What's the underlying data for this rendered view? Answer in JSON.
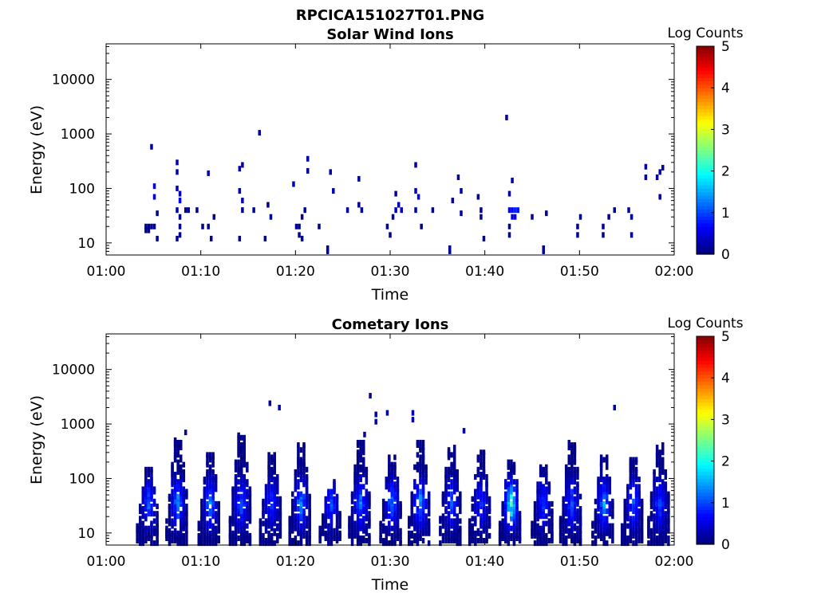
{
  "figure": {
    "filename_title": "RPCICA151027T01.PNG"
  },
  "colors": {
    "axis": "#000000",
    "background": "#ffffff",
    "colormap": [
      "#00007f",
      "#0000ff",
      "#007fff",
      "#00ffff",
      "#7fff7f",
      "#ffff00",
      "#ff7f00",
      "#ff0000",
      "#7f0000"
    ]
  },
  "chart_data": [
    {
      "type": "heatmap",
      "title": "Solar Wind Ions",
      "xlabel": "Time",
      "ylabel": "Energy (eV)",
      "yscale": "log",
      "ylim": [
        6,
        45000
      ],
      "xlim_minutes": [
        0,
        60
      ],
      "x_ticks": [
        "01:00",
        "01:10",
        "01:20",
        "01:30",
        "01:40",
        "01:50",
        "02:00"
      ],
      "y_ticks": [
        {
          "value": 10,
          "label": "10"
        },
        {
          "value": 100,
          "label": "100"
        },
        {
          "value": 1000,
          "label": "1000"
        },
        {
          "value": 10000,
          "label": "10000"
        }
      ],
      "colorbar": {
        "label": "Log Counts",
        "range": [
          0,
          5
        ],
        "ticks": [
          "0",
          "1",
          "2",
          "3",
          "4",
          "5"
        ]
      },
      "cells": [
        {
          "t": 4.2,
          "e": 20,
          "c": 0.1
        },
        {
          "t": 4.5,
          "e": 20,
          "c": 0.1
        },
        {
          "t": 4.8,
          "e": 20,
          "c": 0.1
        },
        {
          "t": 4.2,
          "e": 17,
          "c": 0.1
        },
        {
          "t": 4.5,
          "e": 17,
          "c": 0.1
        },
        {
          "t": 4.8,
          "e": 580,
          "c": 0.2
        },
        {
          "t": 5.1,
          "e": 110,
          "c": 0.4
        },
        {
          "t": 5.1,
          "e": 70,
          "c": 0.4
        },
        {
          "t": 5.1,
          "e": 20,
          "c": 0.1
        },
        {
          "t": 5.4,
          "e": 35,
          "c": 0.1
        },
        {
          "t": 5.4,
          "e": 12,
          "c": 0.1
        },
        {
          "t": 7.5,
          "e": 300,
          "c": 0.2
        },
        {
          "t": 7.5,
          "e": 200,
          "c": 0.2
        },
        {
          "t": 7.5,
          "e": 100,
          "c": 0.3
        },
        {
          "t": 7.8,
          "e": 80,
          "c": 0.3
        },
        {
          "t": 7.8,
          "e": 60,
          "c": 0.6
        },
        {
          "t": 7.5,
          "e": 40,
          "c": 0.2
        },
        {
          "t": 7.8,
          "e": 30,
          "c": 0.1
        },
        {
          "t": 7.8,
          "e": 20,
          "c": 0.1
        },
        {
          "t": 7.5,
          "e": 12,
          "c": 0.1
        },
        {
          "t": 7.8,
          "e": 14,
          "c": 0.1
        },
        {
          "t": 8.4,
          "e": 40,
          "c": 0.1
        },
        {
          "t": 8.7,
          "e": 40,
          "c": 0.1
        },
        {
          "t": 9.6,
          "e": 40,
          "c": 0.1
        },
        {
          "t": 10.2,
          "e": 20,
          "c": 0.1
        },
        {
          "t": 10.8,
          "e": 190,
          "c": 0.2
        },
        {
          "t": 10.8,
          "e": 20,
          "c": 0.1
        },
        {
          "t": 11.1,
          "e": 12,
          "c": 0.1
        },
        {
          "t": 11.4,
          "e": 30,
          "c": 0.1
        },
        {
          "t": 14.1,
          "e": 230,
          "c": 0.2
        },
        {
          "t": 14.4,
          "e": 270,
          "c": 0.2
        },
        {
          "t": 14.1,
          "e": 90,
          "c": 0.2
        },
        {
          "t": 14.4,
          "e": 60,
          "c": 0.3
        },
        {
          "t": 14.4,
          "e": 40,
          "c": 0.1
        },
        {
          "t": 14.1,
          "e": 12,
          "c": 0.1
        },
        {
          "t": 15.6,
          "e": 40,
          "c": 0.1
        },
        {
          "t": 16.2,
          "e": 1050,
          "c": 0.2
        },
        {
          "t": 17.1,
          "e": 50,
          "c": 0.1
        },
        {
          "t": 17.4,
          "e": 30,
          "c": 0.1
        },
        {
          "t": 16.8,
          "e": 12,
          "c": 0.1
        },
        {
          "t": 19.8,
          "e": 120,
          "c": 0.2
        },
        {
          "t": 20.1,
          "e": 20,
          "c": 0.1
        },
        {
          "t": 20.4,
          "e": 20,
          "c": 0.1
        },
        {
          "t": 20.4,
          "e": 14,
          "c": 0.1
        },
        {
          "t": 20.7,
          "e": 12,
          "c": 0.1
        },
        {
          "t": 20.7,
          "e": 30,
          "c": 0.1
        },
        {
          "t": 21.0,
          "e": 40,
          "c": 0.2
        },
        {
          "t": 21.3,
          "e": 350,
          "c": 0.2
        },
        {
          "t": 21.3,
          "e": 210,
          "c": 0.2
        },
        {
          "t": 22.5,
          "e": 20,
          "c": 0.1
        },
        {
          "t": 23.4,
          "e": 8,
          "c": 0.1
        },
        {
          "t": 23.4,
          "e": 7,
          "c": 0.1
        },
        {
          "t": 23.7,
          "e": 200,
          "c": 0.2
        },
        {
          "t": 24.0,
          "e": 90,
          "c": 0.2
        },
        {
          "t": 25.5,
          "e": 40,
          "c": 0.1
        },
        {
          "t": 26.7,
          "e": 150,
          "c": 0.2
        },
        {
          "t": 26.7,
          "e": 50,
          "c": 0.1
        },
        {
          "t": 27.0,
          "e": 40,
          "c": 0.1
        },
        {
          "t": 29.7,
          "e": 20,
          "c": 0.1
        },
        {
          "t": 30.0,
          "e": 14,
          "c": 0.1
        },
        {
          "t": 30.3,
          "e": 30,
          "c": 0.2
        },
        {
          "t": 30.6,
          "e": 40,
          "c": 0.3
        },
        {
          "t": 30.6,
          "e": 80,
          "c": 0.2
        },
        {
          "t": 30.9,
          "e": 50,
          "c": 0.3
        },
        {
          "t": 31.2,
          "e": 40,
          "c": 0.3
        },
        {
          "t": 32.7,
          "e": 270,
          "c": 0.2
        },
        {
          "t": 32.7,
          "e": 90,
          "c": 0.3
        },
        {
          "t": 33.0,
          "e": 70,
          "c": 0.5
        },
        {
          "t": 32.7,
          "e": 40,
          "c": 0.2
        },
        {
          "t": 33.3,
          "e": 20,
          "c": 0.1
        },
        {
          "t": 34.5,
          "e": 40,
          "c": 0.1
        },
        {
          "t": 36.3,
          "e": 8,
          "c": 0.1
        },
        {
          "t": 36.3,
          "e": 7,
          "c": 0.1
        },
        {
          "t": 36.6,
          "e": 60,
          "c": 0.1
        },
        {
          "t": 37.2,
          "e": 160,
          "c": 0.2
        },
        {
          "t": 37.5,
          "e": 90,
          "c": 0.2
        },
        {
          "t": 37.5,
          "e": 35,
          "c": 0.1
        },
        {
          "t": 39.3,
          "e": 70,
          "c": 0.1
        },
        {
          "t": 39.6,
          "e": 40,
          "c": 0.1
        },
        {
          "t": 39.6,
          "e": 30,
          "c": 0.1
        },
        {
          "t": 39.9,
          "e": 12,
          "c": 0.1
        },
        {
          "t": 42.3,
          "e": 2000,
          "c": 0.2
        },
        {
          "t": 42.6,
          "e": 80,
          "c": 0.3
        },
        {
          "t": 42.6,
          "e": 40,
          "c": 0.5
        },
        {
          "t": 42.9,
          "e": 40,
          "c": 0.6
        },
        {
          "t": 43.2,
          "e": 40,
          "c": 0.8
        },
        {
          "t": 43.5,
          "e": 40,
          "c": 0.7
        },
        {
          "t": 42.9,
          "e": 30,
          "c": 0.4
        },
        {
          "t": 43.2,
          "e": 30,
          "c": 0.5
        },
        {
          "t": 42.9,
          "e": 140,
          "c": 0.3
        },
        {
          "t": 42.6,
          "e": 20,
          "c": 0.1
        },
        {
          "t": 42.6,
          "e": 14,
          "c": 0.1
        },
        {
          "t": 45.0,
          "e": 30,
          "c": 0.1
        },
        {
          "t": 46.2,
          "e": 8,
          "c": 0.1
        },
        {
          "t": 46.2,
          "e": 7,
          "c": 0.1
        },
        {
          "t": 46.5,
          "e": 35,
          "c": 0.1
        },
        {
          "t": 49.8,
          "e": 20,
          "c": 0.1
        },
        {
          "t": 49.8,
          "e": 14,
          "c": 0.1
        },
        {
          "t": 50.1,
          "e": 30,
          "c": 0.1
        },
        {
          "t": 52.5,
          "e": 20,
          "c": 0.1
        },
        {
          "t": 52.5,
          "e": 14,
          "c": 0.1
        },
        {
          "t": 53.1,
          "e": 30,
          "c": 0.1
        },
        {
          "t": 53.7,
          "e": 40,
          "c": 0.1
        },
        {
          "t": 55.2,
          "e": 40,
          "c": 0.1
        },
        {
          "t": 55.5,
          "e": 14,
          "c": 0.1
        },
        {
          "t": 55.5,
          "e": 30,
          "c": 0.1
        },
        {
          "t": 57.0,
          "e": 250,
          "c": 0.2
        },
        {
          "t": 57.0,
          "e": 160,
          "c": 0.2
        },
        {
          "t": 58.2,
          "e": 160,
          "c": 0.2
        },
        {
          "t": 58.8,
          "e": 240,
          "c": 0.2
        },
        {
          "t": 58.5,
          "e": 200,
          "c": 0.2
        },
        {
          "t": 58.5,
          "e": 70,
          "c": 0.2
        }
      ]
    },
    {
      "type": "heatmap",
      "title": "Cometary Ions",
      "xlabel": "Time",
      "ylabel": "Energy (eV)",
      "yscale": "log",
      "ylim": [
        6,
        45000
      ],
      "xlim_minutes": [
        0,
        60
      ],
      "x_ticks": [
        "01:00",
        "01:10",
        "01:20",
        "01:30",
        "01:40",
        "01:50",
        "02:00"
      ],
      "y_ticks": [
        {
          "value": 10,
          "label": "10"
        },
        {
          "value": 100,
          "label": "100"
        },
        {
          "value": 1000,
          "label": "1000"
        },
        {
          "value": 10000,
          "label": "10000"
        }
      ],
      "colorbar": {
        "label": "Log Counts",
        "range": [
          0,
          5
        ],
        "ticks": [
          "0",
          "1",
          "2",
          "3",
          "4",
          "5"
        ]
      },
      "bursts": [
        {
          "t": 4.5,
          "top": 150,
          "peak": 1.3
        },
        {
          "t": 7.6,
          "top": 550,
          "peak": 1.6
        },
        {
          "t": 11.0,
          "top": 300,
          "peak": 1.5
        },
        {
          "t": 14.3,
          "top": 650,
          "peak": 1.4
        },
        {
          "t": 17.5,
          "top": 300,
          "peak": 1.1
        },
        {
          "t": 20.6,
          "top": 450,
          "peak": 1.6
        },
        {
          "t": 23.8,
          "top": 90,
          "peak": 1.2
        },
        {
          "t": 26.9,
          "top": 500,
          "peak": 1.5
        },
        {
          "t": 30.2,
          "top": 260,
          "peak": 1.5
        },
        {
          "t": 33.2,
          "top": 500,
          "peak": 1.7
        },
        {
          "t": 36.5,
          "top": 420,
          "peak": 1.2
        },
        {
          "t": 39.6,
          "top": 330,
          "peak": 1.1
        },
        {
          "t": 42.8,
          "top": 220,
          "peak": 2.6
        },
        {
          "t": 46.2,
          "top": 190,
          "peak": 1.1
        },
        {
          "t": 49.2,
          "top": 480,
          "peak": 1.3
        },
        {
          "t": 52.6,
          "top": 250,
          "peak": 1.6
        },
        {
          "t": 55.7,
          "top": 240,
          "peak": 1.3
        },
        {
          "t": 58.5,
          "top": 420,
          "peak": 1.2
        }
      ],
      "scatter": [
        {
          "t": 17.3,
          "e": 2400,
          "c": 0.2
        },
        {
          "t": 18.3,
          "e": 2000,
          "c": 0.2
        },
        {
          "t": 27.9,
          "e": 3300,
          "c": 0.2
        },
        {
          "t": 28.5,
          "e": 1500,
          "c": 0.2
        },
        {
          "t": 28.5,
          "e": 1100,
          "c": 0.2
        },
        {
          "t": 29.7,
          "e": 1600,
          "c": 0.2
        },
        {
          "t": 32.4,
          "e": 1600,
          "c": 0.3
        },
        {
          "t": 32.4,
          "e": 1200,
          "c": 0.3
        },
        {
          "t": 53.7,
          "e": 2000,
          "c": 0.2
        },
        {
          "t": 8.4,
          "e": 700,
          "c": 0.2
        },
        {
          "t": 37.8,
          "e": 750,
          "c": 0.2
        },
        {
          "t": 27.3,
          "e": 640,
          "c": 0.2
        }
      ]
    }
  ]
}
